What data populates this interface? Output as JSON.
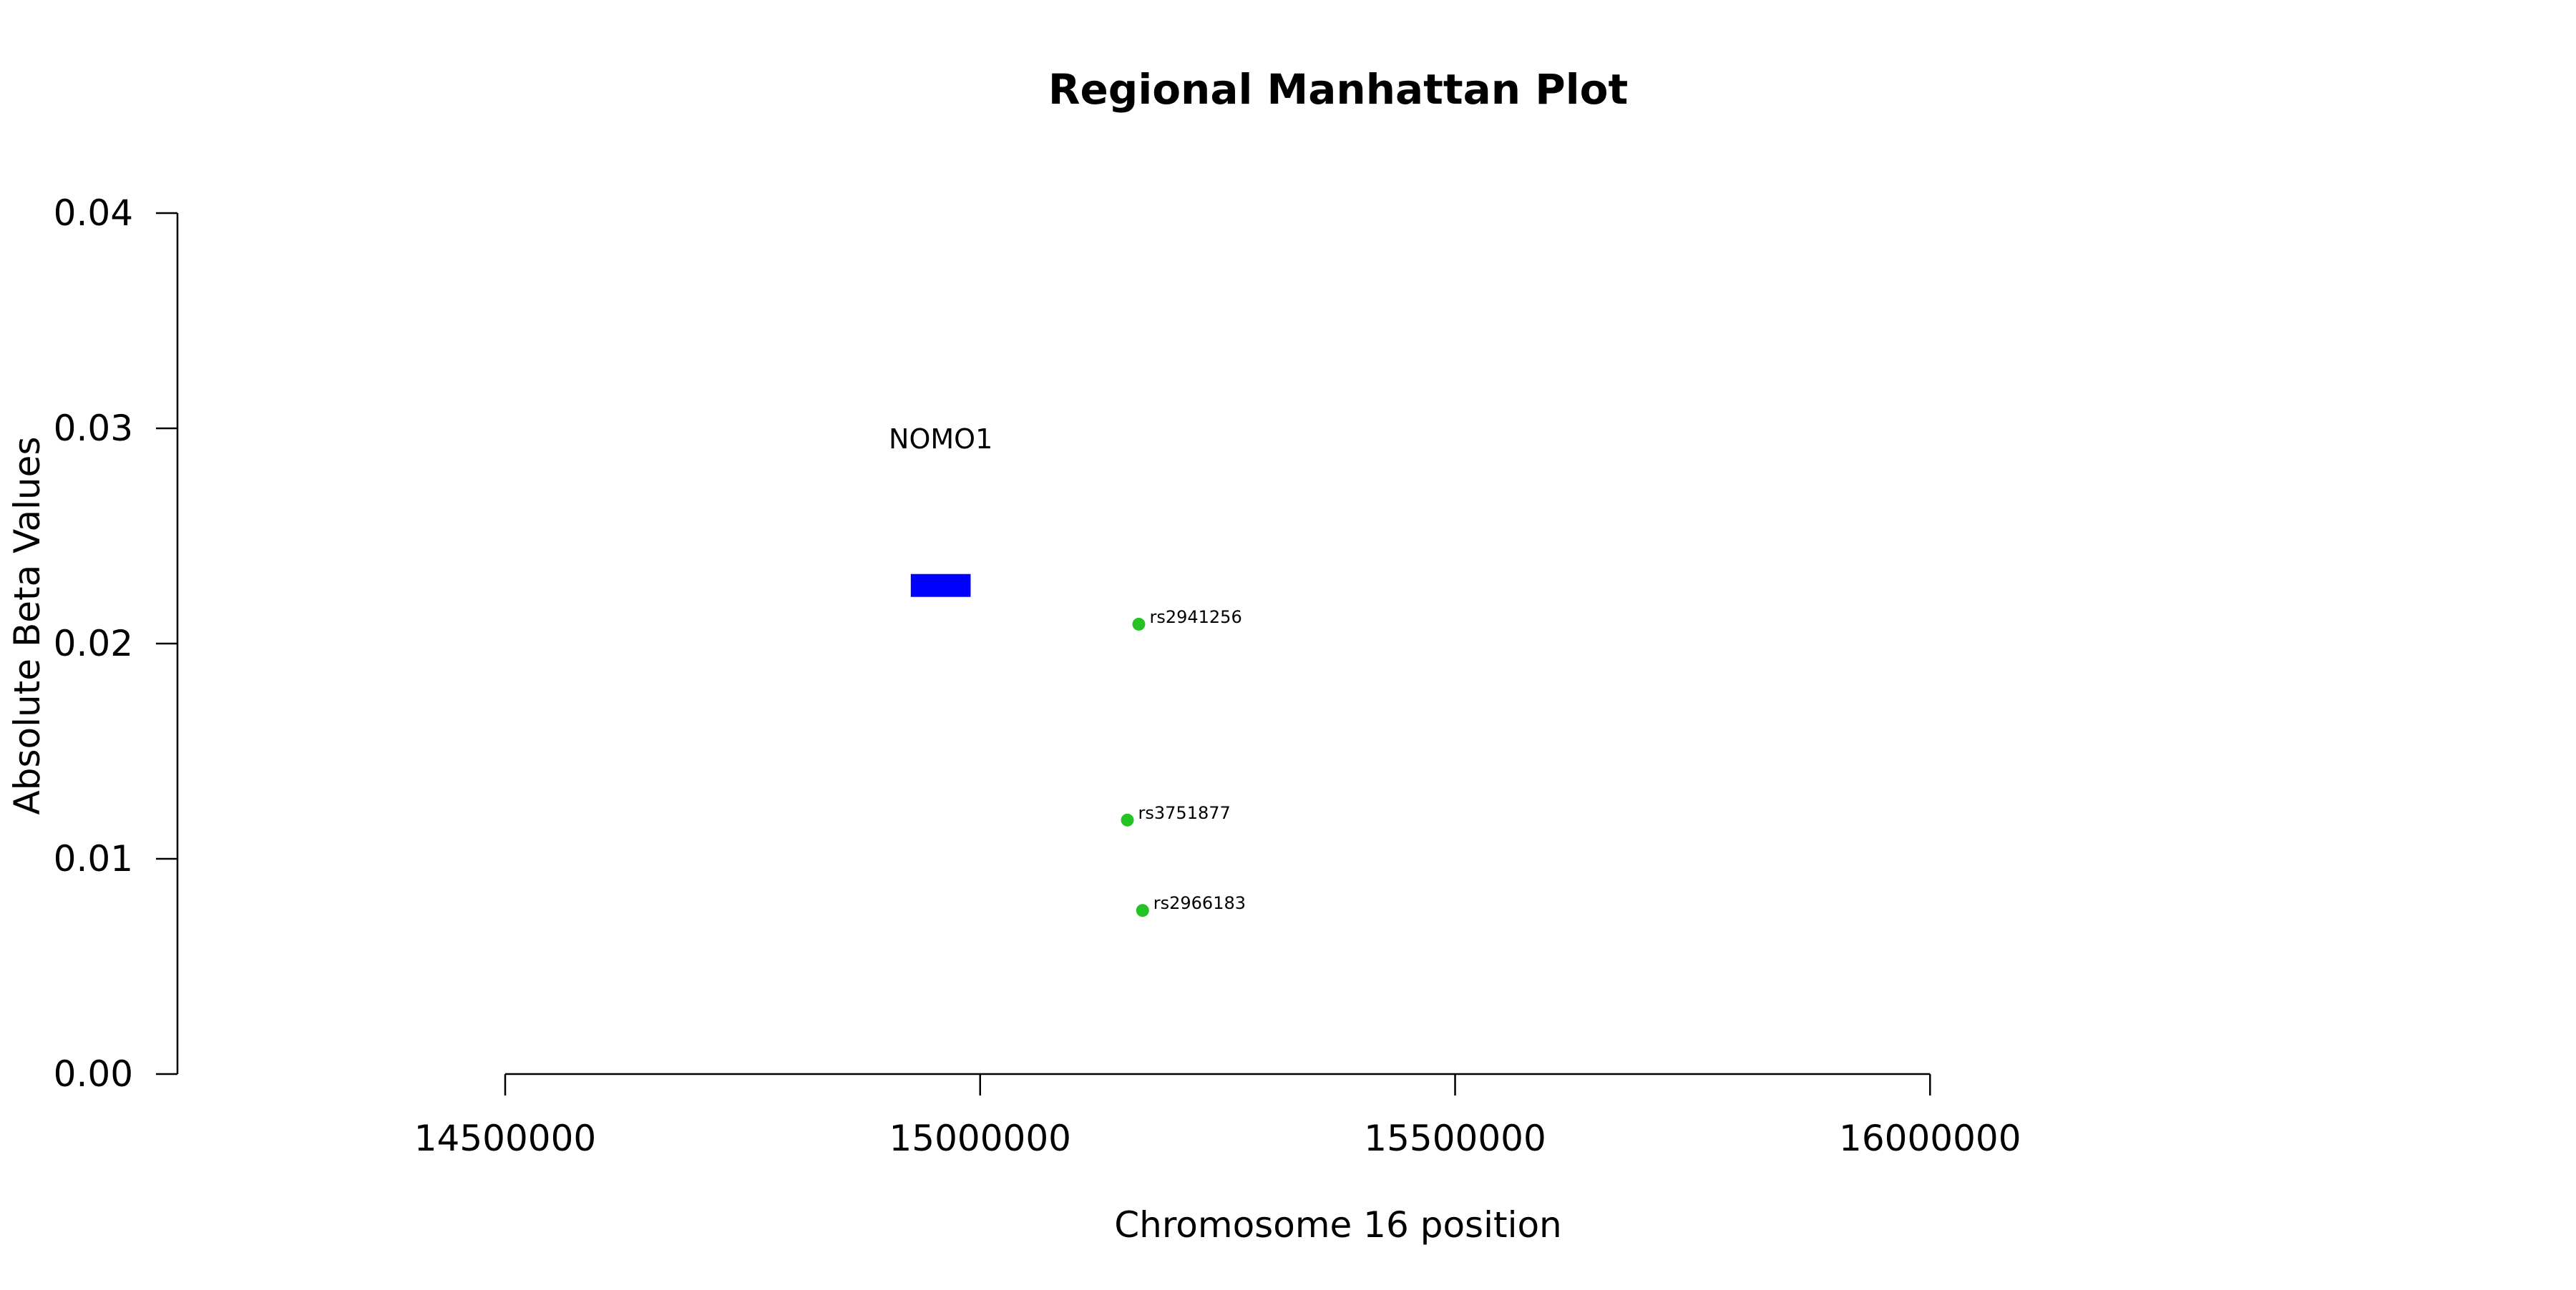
{
  "chart_data": {
    "type": "scatter",
    "title": "Regional Manhattan Plot",
    "xlabel": "Chromosome 16 position",
    "ylabel": "Absolute Beta Values",
    "xlim": [
      14155000,
      16680000
    ],
    "ylim": [
      0,
      0.04
    ],
    "x_axis_range": [
      14500000,
      16000000
    ],
    "x_ticks": [
      14500000,
      15000000,
      15500000,
      16000000
    ],
    "x_tick_labels": [
      "14500000",
      "15000000",
      "15500000",
      "16000000"
    ],
    "y_ticks": [
      0.0,
      0.01,
      0.02,
      0.03,
      0.04
    ],
    "y_tick_labels": [
      "0.00",
      "0.01",
      "0.02",
      "0.03",
      "0.04"
    ],
    "grid": false,
    "gene": {
      "label": "NOMO1",
      "start": 14927000,
      "end": 14990000,
      "y": 0.0227,
      "label_y": 0.0295,
      "color": "#0000ff"
    },
    "point_color": "#22c322",
    "points": [
      {
        "label": "rs2941256",
        "x": 15167000,
        "y": 0.0209
      },
      {
        "label": "rs3751877",
        "x": 15155000,
        "y": 0.0118
      },
      {
        "label": "rs2966183",
        "x": 15171000,
        "y": 0.0076
      }
    ]
  }
}
